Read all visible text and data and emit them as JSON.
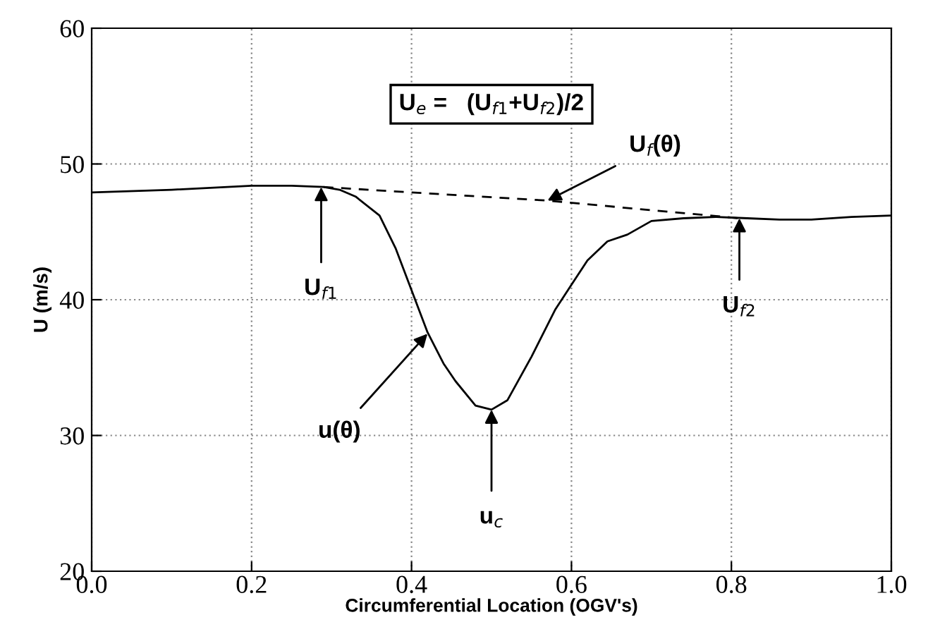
{
  "chart_data": {
    "type": "line",
    "xlabel": "Circumferential Location (OGV's)",
    "ylabel": "U (m/s)",
    "xlim": [
      0.0,
      1.0
    ],
    "xticks": [
      {
        "value": 0,
        "label": "0.0"
      },
      0.2,
      0.4,
      0.6,
      0.8,
      {
        "value": 1,
        "label": "1.0"
      }
    ],
    "ylim": [
      20,
      60
    ],
    "yticks": [
      20,
      30,
      40,
      50,
      60
    ],
    "grid": true,
    "marker": "none",
    "series": [
      {
        "color": "#000000",
        "line_style": "solid",
        "x": [
          0,
          0.1,
          0.2,
          0.25,
          0.29,
          0.31,
          0.33,
          0.36,
          0.38,
          0.4,
          0.42,
          0.44,
          0.455,
          0.48,
          0.5,
          0.52,
          0.55,
          0.58,
          0.6,
          0.62,
          0.645,
          0.67,
          0.7,
          0.74,
          0.78,
          0.82,
          0.86,
          0.9,
          0.95,
          1.0
        ],
        "values": [
          47.9,
          48.1,
          48.4,
          48.4,
          48.3,
          48.1,
          47.6,
          46.2,
          43.8,
          40.7,
          37.6,
          35.3,
          34.0,
          32.2,
          31.9,
          32.6,
          35.8,
          39.3,
          41.1,
          42.9,
          44.3,
          44.8,
          45.8,
          46.0,
          46.1,
          46.0,
          45.9,
          45.9,
          46.1,
          46.2
        ]
      },
      {
        "color": "#000000",
        "line_style": "dashed",
        "x": [
          0.29,
          0.57,
          0.81
        ],
        "values": [
          48.3,
          47.3,
          46.0
        ]
      }
    ],
    "annotations": [
      "U$_{e}$ =   (U$_{f1}$+U$_{f2}$)/2",
      {
        "text": "U$_{f}$(θ)",
        "x": 0.57,
        "y": 47.3
      },
      {
        "text": "U$_{f1}$",
        "x": 0.287,
        "y": 48.3
      },
      {
        "text": "u(θ)",
        "x": 0.42,
        "y": 37.5
      },
      {
        "text": "u$_{c}$",
        "x": 0.5,
        "y": 31.9
      },
      {
        "text": "U$_{f2}$",
        "x": 0.81,
        "y": 46.0
      }
    ]
  }
}
